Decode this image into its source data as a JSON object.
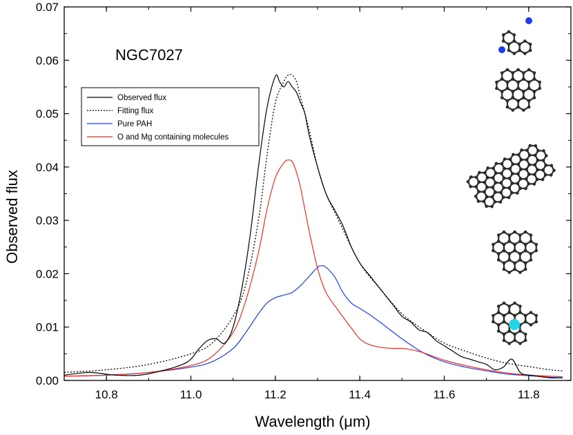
{
  "chart_data": {
    "type": "line",
    "title": "",
    "annotation": "NGC7027",
    "xlabel": "Wavelength (μm)",
    "ylabel": "Observed flux",
    "xlim": [
      10.7,
      11.9
    ],
    "ylim": [
      0,
      0.07
    ],
    "grid": false,
    "legend_position": "top-left",
    "x_ticks": [
      "10.8",
      "11.0",
      "11.2",
      "11.4",
      "11.6",
      "11.8"
    ],
    "x_tick_values": [
      10.8,
      11.0,
      11.2,
      11.4,
      11.6,
      11.8
    ],
    "y_ticks": [
      "0.00",
      "0.01",
      "0.02",
      "0.03",
      "0.04",
      "0.05",
      "0.06",
      "0.07"
    ],
    "y_tick_values": [
      0,
      0.01,
      0.02,
      0.03,
      0.04,
      0.05,
      0.06,
      0.07
    ],
    "series": [
      {
        "name": "Observed flux",
        "color": "#000000",
        "dash": "solid",
        "x": [
          10.7,
          10.76,
          10.82,
          10.88,
          10.94,
          10.98,
          11.0,
          11.02,
          11.04,
          11.06,
          11.08,
          11.1,
          11.12,
          11.14,
          11.16,
          11.18,
          11.2,
          11.21,
          11.22,
          11.23,
          11.24,
          11.25,
          11.26,
          11.27,
          11.28,
          11.3,
          11.32,
          11.34,
          11.36,
          11.38,
          11.4,
          11.42,
          11.44,
          11.46,
          11.48,
          11.5,
          11.52,
          11.54,
          11.56,
          11.58,
          11.6,
          11.62,
          11.64,
          11.66,
          11.68,
          11.7,
          11.72,
          11.74,
          11.76,
          11.78,
          11.8,
          11.82,
          11.85,
          11.88
        ],
        "y": [
          0.001,
          0.0015,
          0.001,
          0.001,
          0.002,
          0.003,
          0.004,
          0.006,
          0.0075,
          0.0078,
          0.007,
          0.01,
          0.017,
          0.027,
          0.04,
          0.051,
          0.057,
          0.056,
          0.055,
          0.056,
          0.055,
          0.054,
          0.052,
          0.05,
          0.046,
          0.04,
          0.035,
          0.032,
          0.029,
          0.025,
          0.022,
          0.02,
          0.018,
          0.016,
          0.014,
          0.012,
          0.011,
          0.0095,
          0.009,
          0.0075,
          0.0065,
          0.0055,
          0.0045,
          0.004,
          0.0035,
          0.003,
          0.002,
          0.0025,
          0.004,
          0.0015,
          0.001,
          0.0008,
          0.0005,
          0.0005
        ]
      },
      {
        "name": "Fitting flux",
        "color": "#000000",
        "dash": "dotted",
        "x": [
          10.7,
          10.8,
          10.9,
          11.0,
          11.05,
          11.1,
          11.13,
          11.16,
          11.18,
          11.2,
          11.22,
          11.23,
          11.24,
          11.25,
          11.26,
          11.28,
          11.3,
          11.32,
          11.35,
          11.4,
          11.45,
          11.5,
          11.55,
          11.6,
          11.65,
          11.7,
          11.75,
          11.8,
          11.85,
          11.88
        ],
        "y": [
          0.0015,
          0.002,
          0.003,
          0.005,
          0.007,
          0.012,
          0.018,
          0.03,
          0.042,
          0.052,
          0.056,
          0.0572,
          0.0572,
          0.056,
          0.053,
          0.047,
          0.04,
          0.035,
          0.03,
          0.022,
          0.017,
          0.0125,
          0.0095,
          0.007,
          0.0055,
          0.0042,
          0.0032,
          0.0026,
          0.002,
          0.0018
        ]
      },
      {
        "name": "Pure PAH",
        "color": "#1f3de8",
        "dash": "solid",
        "x": [
          10.7,
          10.8,
          10.9,
          11.0,
          11.05,
          11.1,
          11.13,
          11.16,
          11.18,
          11.2,
          11.22,
          11.24,
          11.26,
          11.28,
          11.3,
          11.31,
          11.32,
          11.34,
          11.36,
          11.38,
          11.4,
          11.42,
          11.45,
          11.5,
          11.55,
          11.6,
          11.65,
          11.7,
          11.75,
          11.8,
          11.85,
          11.88
        ],
        "y": [
          0.0008,
          0.001,
          0.0015,
          0.0025,
          0.0035,
          0.006,
          0.009,
          0.0125,
          0.0145,
          0.0155,
          0.016,
          0.0165,
          0.0178,
          0.0195,
          0.0212,
          0.0215,
          0.0212,
          0.0195,
          0.0165,
          0.0145,
          0.0135,
          0.0125,
          0.0108,
          0.0078,
          0.0052,
          0.0035,
          0.0025,
          0.0018,
          0.0012,
          0.0009,
          0.0006,
          0.0005
        ]
      },
      {
        "name": "O and Mg containing molecules",
        "color": "#e8302a",
        "dash": "solid",
        "x": [
          10.7,
          10.8,
          10.9,
          11.0,
          11.05,
          11.1,
          11.13,
          11.16,
          11.18,
          11.2,
          11.22,
          11.23,
          11.24,
          11.25,
          11.26,
          11.28,
          11.3,
          11.32,
          11.35,
          11.38,
          11.4,
          11.42,
          11.45,
          11.48,
          11.5,
          11.52,
          11.55,
          11.6,
          11.65,
          11.7,
          11.75,
          11.8,
          11.85,
          11.88
        ],
        "y": [
          0.0008,
          0.001,
          0.0015,
          0.0028,
          0.0045,
          0.009,
          0.015,
          0.024,
          0.032,
          0.038,
          0.0408,
          0.0413,
          0.041,
          0.039,
          0.036,
          0.028,
          0.021,
          0.0165,
          0.013,
          0.0098,
          0.0078,
          0.0068,
          0.0062,
          0.006,
          0.006,
          0.0058,
          0.0052,
          0.0038,
          0.0028,
          0.002,
          0.0014,
          0.001,
          0.0008,
          0.0007
        ]
      }
    ]
  },
  "molecule_icons": [
    "molecule-mg-substituted",
    "molecule-circumcoronene",
    "molecule-elongated-pah",
    "molecule-coronene-like",
    "molecule-o-containing"
  ],
  "colors": {
    "axis": "#000000",
    "mg_atom": "#1e3de8",
    "o_atom": "#22d4e8",
    "carbon": "#2b2b2b",
    "hydrogen": "#cfcfcf"
  }
}
